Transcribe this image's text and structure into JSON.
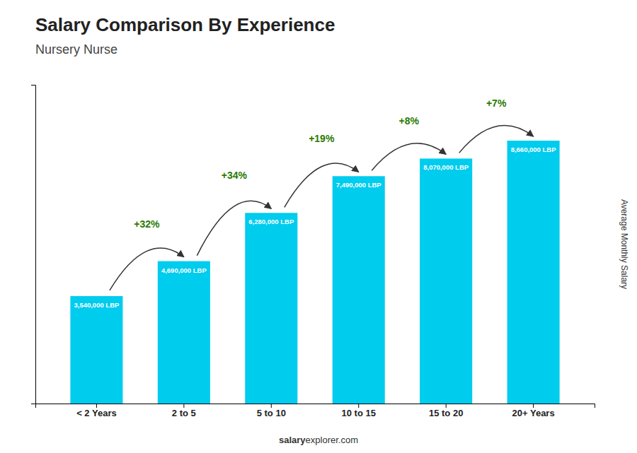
{
  "chart_data": {
    "type": "bar",
    "title": "Salary Comparison By Experience",
    "subtitle": "Nursery Nurse",
    "categories": [
      "< 2 Years",
      "2 to 5",
      "5 to 10",
      "10 to 15",
      "15 to 20",
      "20+ Years"
    ],
    "values": [
      3540000,
      4690000,
      6280000,
      7490000,
      8070000,
      8660000
    ],
    "value_labels": [
      "3,540,000 LBP",
      "4,690,000 LBP",
      "6,280,000 LBP",
      "7,490,000 LBP",
      "8,070,000 LBP",
      "8,660,000 LBP"
    ],
    "data_labels": true,
    "color": "#00CCEE",
    "ylabel": "Average Monthly Salary",
    "ylim": [
      0,
      10500000
    ],
    "yticks": [],
    "tick_labels": "x",
    "grid": false,
    "annotations": [
      "+32%",
      "+34%",
      "+19%",
      "+8%",
      "+7%"
    ],
    "footer": [
      "salary",
      "explorer.com"
    ]
  }
}
